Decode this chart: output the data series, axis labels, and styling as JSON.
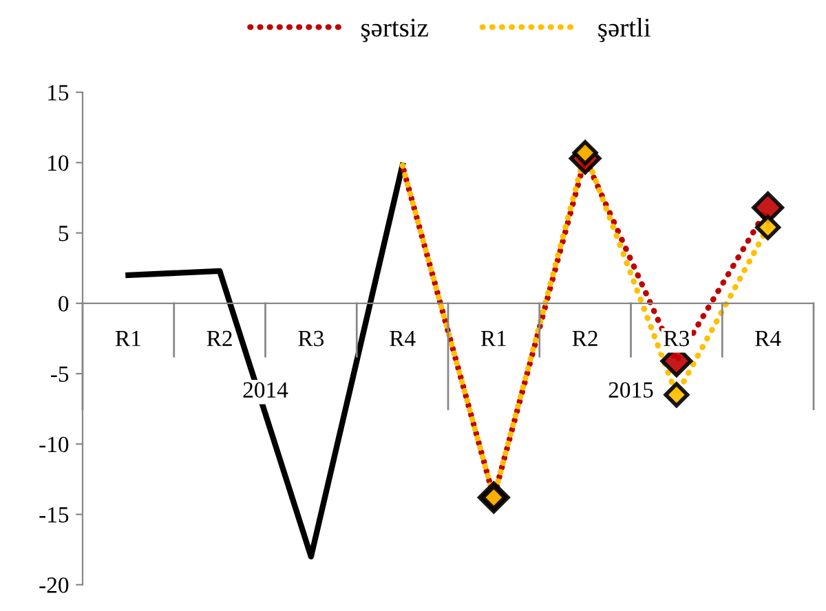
{
  "chart_data": {
    "type": "line",
    "categories": [
      "R1",
      "R2",
      "R3",
      "R4",
      "R1",
      "R2",
      "R3",
      "R4"
    ],
    "series": [
      {
        "color": "#000000",
        "values": [
          2,
          2.3,
          -18,
          9.8,
          null,
          null,
          null,
          null
        ],
        "line_style": "solid"
      },
      {
        "name": "şərtsiz",
        "color": "#c00000",
        "values": [
          null,
          null,
          null,
          9.8,
          -13.8,
          10.3,
          -4.1,
          6.8
        ],
        "line_style": "dotted",
        "marker": "diamond"
      },
      {
        "name": "şərtli",
        "color": "#ffc000",
        "values": [
          null,
          null,
          null,
          9.8,
          -13.8,
          10.7,
          -6.5,
          5.4
        ],
        "line_style": "dotted",
        "marker": "diamond"
      }
    ],
    "annotations": [
      "2014",
      "2015"
    ],
    "ylim": [
      -20,
      15
    ],
    "yticks": [
      -20,
      -15,
      -10,
      -5,
      0,
      5,
      10,
      15
    ],
    "grid": false,
    "legend": "top"
  }
}
